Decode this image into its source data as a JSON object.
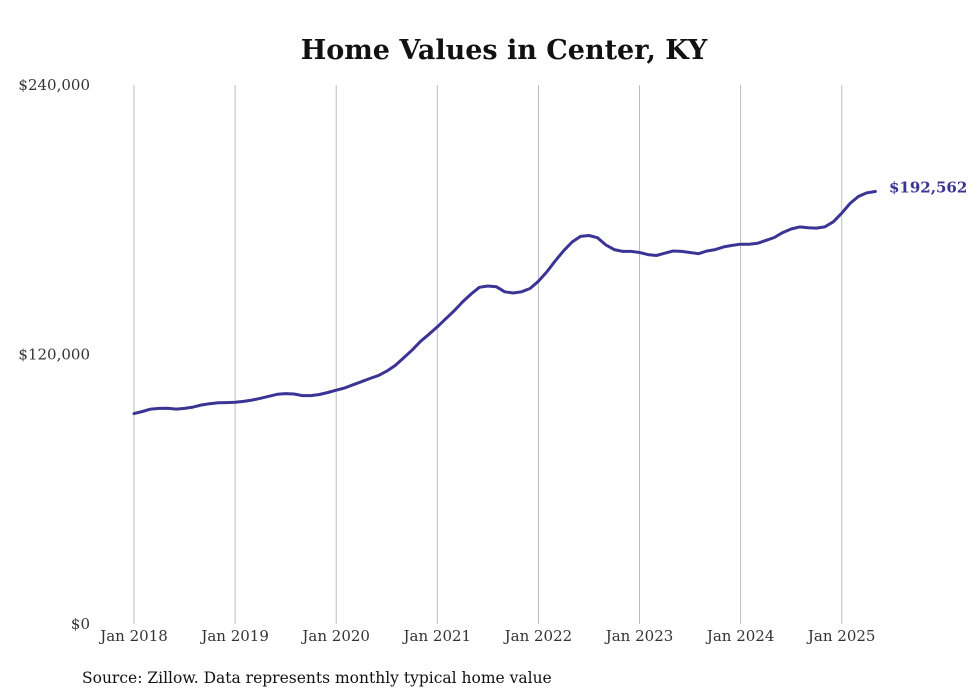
{
  "chart_data": {
    "type": "line",
    "title": "Home Values in Center, KY",
    "xlabel": "",
    "ylabel": "",
    "source_note": "Source: Zillow. Data represents monthly typical home value",
    "line_color": "#3b3494",
    "grid_color": "#bdbdbd",
    "grid": "vertical lines at each January",
    "ylim": [
      0,
      240000
    ],
    "y_ticks": [
      {
        "value": 0,
        "label": "$0"
      },
      {
        "value": 120000,
        "label": "$120,000"
      },
      {
        "value": 240000,
        "label": "$240,000"
      }
    ],
    "x_ticks": [
      {
        "value": "2018-01",
        "label": "Jan 2018"
      },
      {
        "value": "2019-01",
        "label": "Jan 2019"
      },
      {
        "value": "2020-01",
        "label": "Jan 2020"
      },
      {
        "value": "2021-01",
        "label": "Jan 2021"
      },
      {
        "value": "2022-01",
        "label": "Jan 2022"
      },
      {
        "value": "2023-01",
        "label": "Jan 2023"
      },
      {
        "value": "2024-01",
        "label": "Jan 2024"
      },
      {
        "value": "2025-01",
        "label": "Jan 2025"
      }
    ],
    "end_label": "$192,562",
    "series": [
      {
        "x": [
          "2018-01",
          "2018-02",
          "2018-03",
          "2018-04",
          "2018-05",
          "2018-06",
          "2018-07",
          "2018-08",
          "2018-09",
          "2018-10",
          "2018-11",
          "2018-12",
          "2019-01",
          "2019-02",
          "2019-03",
          "2019-04",
          "2019-05",
          "2019-06",
          "2019-07",
          "2019-08",
          "2019-09",
          "2019-10",
          "2019-11",
          "2019-12",
          "2020-01",
          "2020-02",
          "2020-03",
          "2020-04",
          "2020-05",
          "2020-06",
          "2020-07",
          "2020-08",
          "2020-09",
          "2020-10",
          "2020-11",
          "2020-12",
          "2021-01",
          "2021-02",
          "2021-03",
          "2021-04",
          "2021-05",
          "2021-06",
          "2021-07",
          "2021-08",
          "2021-09",
          "2021-10",
          "2021-11",
          "2021-12",
          "2022-01",
          "2022-02",
          "2022-03",
          "2022-04",
          "2022-05",
          "2022-06",
          "2022-07",
          "2022-08",
          "2022-09",
          "2022-10",
          "2022-11",
          "2022-12",
          "2023-01",
          "2023-02",
          "2023-03",
          "2023-04",
          "2023-05",
          "2023-06",
          "2023-07",
          "2023-08",
          "2023-09",
          "2023-10",
          "2023-11",
          "2023-12",
          "2024-01",
          "2024-02",
          "2024-03",
          "2024-04",
          "2024-05",
          "2024-06",
          "2024-07",
          "2024-08",
          "2024-09",
          "2024-10",
          "2024-11",
          "2024-12",
          "2025-01",
          "2025-02",
          "2025-03",
          "2025-04",
          "2025-05"
        ],
        "y": [
          93700,
          94600,
          95700,
          96000,
          96100,
          95700,
          96000,
          96600,
          97500,
          98100,
          98500,
          98600,
          98700,
          99100,
          99700,
          100500,
          101400,
          102300,
          102600,
          102400,
          101700,
          101700,
          102200,
          103100,
          104100,
          105100,
          106500,
          107900,
          109300,
          110600,
          112600,
          115100,
          118500,
          121900,
          125800,
          129000,
          132300,
          135900,
          139400,
          143400,
          146900,
          149900,
          150500,
          150200,
          147900,
          147400,
          147900,
          149400,
          152600,
          156800,
          161700,
          166200,
          170100,
          172600,
          173000,
          172000,
          168800,
          166700,
          165900,
          165900,
          165400,
          164500,
          164100,
          165100,
          166100,
          165900,
          165400,
          164900,
          166100,
          166700,
          167900,
          168600,
          169100,
          169100,
          169500,
          170800,
          172100,
          174300,
          175900,
          176800,
          176400,
          176300,
          176800,
          179100,
          182900,
          187300,
          190400,
          192000,
          192562
        ]
      }
    ]
  }
}
